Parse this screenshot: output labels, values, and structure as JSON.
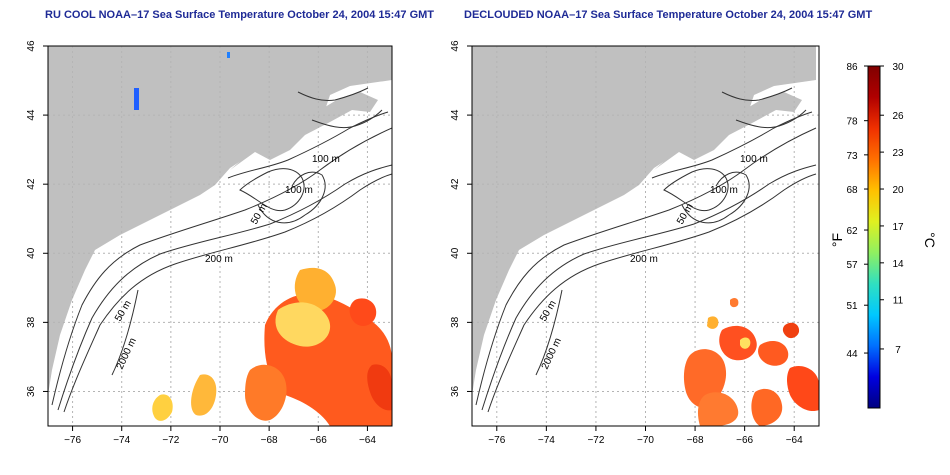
{
  "titles": {
    "left": "RU COOL NOAA–17 Sea Surface Temperature October 24, 2004 15:47 GMT",
    "right": "DECLOUDED NOAA–17 Sea Surface Temperature October 24, 2004 15:47 GMT"
  },
  "map": {
    "lon_ticks": [
      "−76",
      "−74",
      "−72",
      "−70",
      "−68",
      "−66",
      "−64"
    ],
    "lat_ticks": [
      "46",
      "44",
      "42",
      "40",
      "38",
      "36"
    ],
    "lon_range": [
      -77,
      -63
    ],
    "lat_range": [
      35,
      46
    ],
    "contour_labels": {
      "m100_a": "100 m",
      "m100_b": "100 m",
      "m50_inner": "50 m",
      "m200": "200 m",
      "m50_coast": "50 m",
      "m2000": "2000 m"
    },
    "colors": {
      "land": "#c0c0c0",
      "ocean": "#ffffff",
      "grid": "#b4b4b4",
      "contour": "#333333",
      "title": "#1e2a96"
    }
  },
  "colorbar": {
    "f_ticks": [
      "86",
      "78",
      "73",
      "68",
      "62",
      "57",
      "51",
      "44"
    ],
    "c_ticks": [
      "30",
      "26",
      "23",
      "20",
      "17",
      "14",
      "11",
      "7"
    ],
    "f_label": "°F",
    "c_label": "°C",
    "colors": [
      "#000080",
      "#0000e0",
      "#0070ff",
      "#00c8ff",
      "#30e0c0",
      "#90f060",
      "#e0f020",
      "#ffc000",
      "#ff7000",
      "#f03000",
      "#b00000",
      "#800000"
    ]
  }
}
